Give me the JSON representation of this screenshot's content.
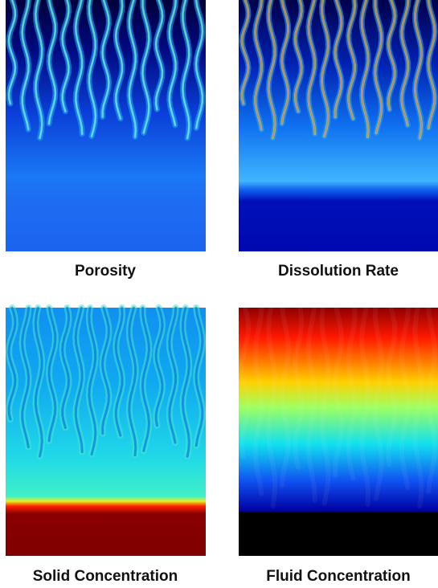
{
  "panels": [
    {
      "caption": "Porosity"
    },
    {
      "caption": "Dissolution Rate"
    },
    {
      "caption": "Solid Concentration"
    },
    {
      "caption": "Fluid Concentration"
    }
  ]
}
